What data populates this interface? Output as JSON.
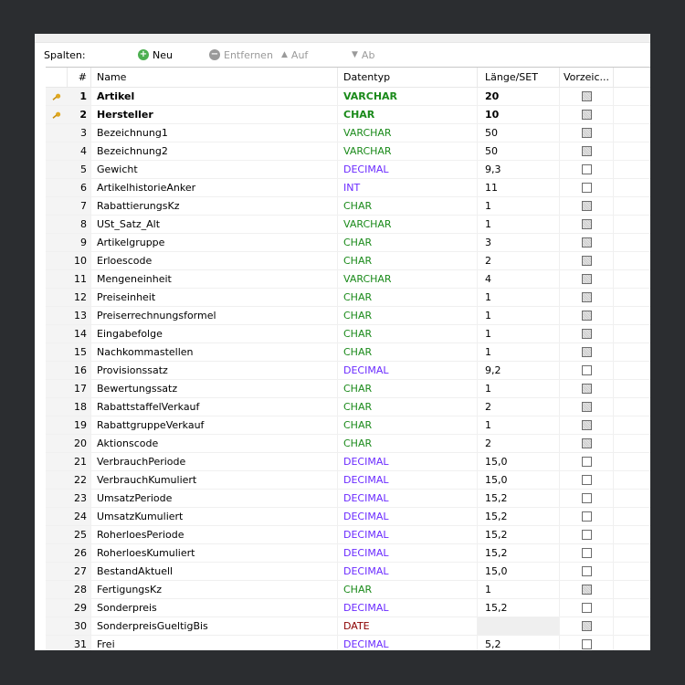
{
  "toolbar": {
    "label": "Spalten:",
    "new": "Neu",
    "remove": "Entfernen",
    "up": "Auf",
    "down": "Ab"
  },
  "columns": {
    "num": "#",
    "name": "Name",
    "type": "Datentyp",
    "length": "Länge/SET",
    "unsigned": "Vorzeic..."
  },
  "colors": {
    "varchar": "#1a8a1a",
    "char": "#1a8a1a",
    "decimal": "#6b2bff",
    "int": "#6b2bff",
    "date": "#8b0000"
  },
  "rows": [
    {
      "n": "1",
      "name": "Artikel",
      "type": "VARCHAR",
      "len": "20",
      "key": true
    },
    {
      "n": "2",
      "name": "Hersteller",
      "type": "CHAR",
      "len": "10",
      "key": true
    },
    {
      "n": "3",
      "name": "Bezeichnung1",
      "type": "VARCHAR",
      "len": "50"
    },
    {
      "n": "4",
      "name": "Bezeichnung2",
      "type": "VARCHAR",
      "len": "50"
    },
    {
      "n": "5",
      "name": "Gewicht",
      "type": "DECIMAL",
      "len": "9,3"
    },
    {
      "n": "6",
      "name": "ArtikelhistorieAnker",
      "type": "INT",
      "len": "11"
    },
    {
      "n": "7",
      "name": "RabattierungsKz",
      "type": "CHAR",
      "len": "1"
    },
    {
      "n": "8",
      "name": "USt_Satz_Alt",
      "type": "VARCHAR",
      "len": "1"
    },
    {
      "n": "9",
      "name": "Artikelgruppe",
      "type": "CHAR",
      "len": "3"
    },
    {
      "n": "10",
      "name": "Erloescode",
      "type": "CHAR",
      "len": "2"
    },
    {
      "n": "11",
      "name": "Mengeneinheit",
      "type": "VARCHAR",
      "len": "4"
    },
    {
      "n": "12",
      "name": "Preiseinheit",
      "type": "CHAR",
      "len": "1"
    },
    {
      "n": "13",
      "name": "Preiserrechnungsformel",
      "type": "CHAR",
      "len": "1"
    },
    {
      "n": "14",
      "name": "Eingabefolge",
      "type": "CHAR",
      "len": "1"
    },
    {
      "n": "15",
      "name": "Nachkommastellen",
      "type": "CHAR",
      "len": "1"
    },
    {
      "n": "16",
      "name": "Provisionssatz",
      "type": "DECIMAL",
      "len": "9,2"
    },
    {
      "n": "17",
      "name": "Bewertungssatz",
      "type": "CHAR",
      "len": "1"
    },
    {
      "n": "18",
      "name": "RabattstaffelVerkauf",
      "type": "CHAR",
      "len": "2"
    },
    {
      "n": "19",
      "name": "RabattgruppeVerkauf",
      "type": "CHAR",
      "len": "1"
    },
    {
      "n": "20",
      "name": "Aktionscode",
      "type": "CHAR",
      "len": "2"
    },
    {
      "n": "21",
      "name": "VerbrauchPeriode",
      "type": "DECIMAL",
      "len": "15,0"
    },
    {
      "n": "22",
      "name": "VerbrauchKumuliert",
      "type": "DECIMAL",
      "len": "15,0"
    },
    {
      "n": "23",
      "name": "UmsatzPeriode",
      "type": "DECIMAL",
      "len": "15,2"
    },
    {
      "n": "24",
      "name": "UmsatzKumuliert",
      "type": "DECIMAL",
      "len": "15,2"
    },
    {
      "n": "25",
      "name": "RoherloesPeriode",
      "type": "DECIMAL",
      "len": "15,2"
    },
    {
      "n": "26",
      "name": "RoherloesKumuliert",
      "type": "DECIMAL",
      "len": "15,2"
    },
    {
      "n": "27",
      "name": "BestandAktuell",
      "type": "DECIMAL",
      "len": "15,0"
    },
    {
      "n": "28",
      "name": "FertigungsKz",
      "type": "CHAR",
      "len": "1"
    },
    {
      "n": "29",
      "name": "Sonderpreis",
      "type": "DECIMAL",
      "len": "15,2"
    },
    {
      "n": "30",
      "name": "SonderpreisGueltigBis",
      "type": "DATE",
      "len": ""
    },
    {
      "n": "31",
      "name": "Frei",
      "type": "DECIMAL",
      "len": "5,2"
    }
  ]
}
